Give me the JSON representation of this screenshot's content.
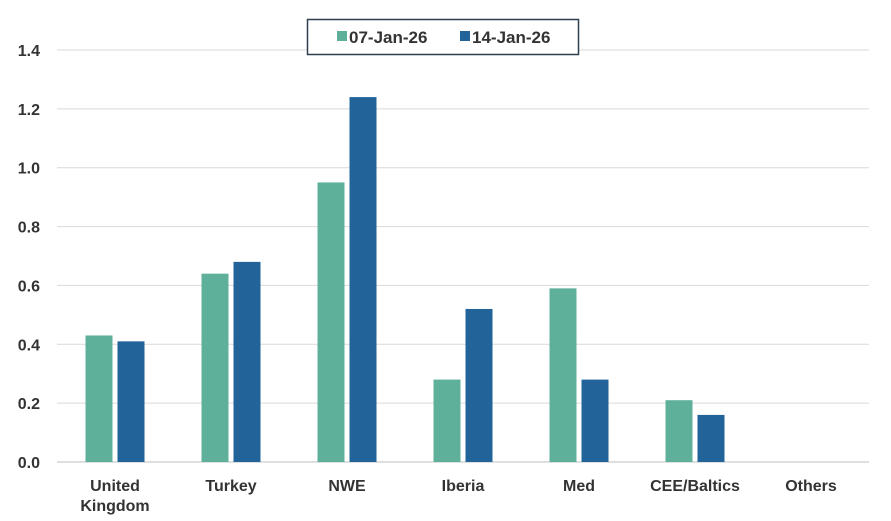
{
  "chart_data": {
    "type": "bar",
    "title": "",
    "xlabel": "",
    "ylabel": "",
    "ylim": [
      0,
      1.4
    ],
    "yticks": [
      "0.0",
      "0.2",
      "0.4",
      "0.6",
      "0.8",
      "1.0",
      "1.2",
      "1.4"
    ],
    "grid": true,
    "legend_position": "top-center",
    "categories": [
      [
        "United",
        "Kingdom"
      ],
      [
        "Turkey"
      ],
      [
        "NWE"
      ],
      [
        "Iberia"
      ],
      [
        "Med"
      ],
      [
        "CEE/Baltics"
      ],
      [
        "Others"
      ]
    ],
    "series": [
      {
        "name": "07-Jan-26",
        "color": "#5fb09a",
        "values": [
          0.43,
          0.64,
          0.95,
          0.28,
          0.59,
          0.21,
          0
        ]
      },
      {
        "name": "14-Jan-26",
        "color": "#22639a",
        "values": [
          0.41,
          0.68,
          1.24,
          0.52,
          0.28,
          0.16,
          0
        ]
      }
    ]
  }
}
